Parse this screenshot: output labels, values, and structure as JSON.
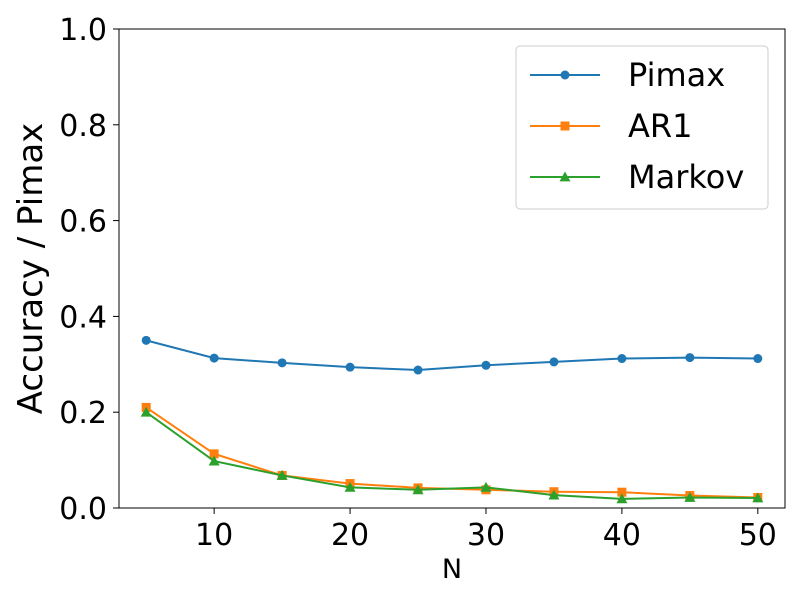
{
  "chart_data": {
    "type": "line",
    "title": "",
    "xlabel": "N",
    "ylabel": "Accuracy / Pimax",
    "xlim": [
      3,
      52
    ],
    "ylim": [
      0,
      1.0
    ],
    "x": [
      5,
      10,
      15,
      20,
      25,
      30,
      35,
      40,
      45,
      50
    ],
    "x_ticks": [
      "10",
      "20",
      "30",
      "40",
      "50"
    ],
    "y_ticks": [
      "0.0",
      "0.2",
      "0.4",
      "0.6",
      "0.8",
      "1.0"
    ],
    "grid": false,
    "legend_position": "top-right",
    "series": [
      {
        "name": "Pimax",
        "color": "#1f77b4",
        "marker": "circle",
        "values": [
          0.35,
          0.313,
          0.303,
          0.294,
          0.288,
          0.298,
          0.305,
          0.312,
          0.314,
          0.312
        ]
      },
      {
        "name": "AR1",
        "color": "#ff7f0e",
        "marker": "square",
        "values": [
          0.21,
          0.113,
          0.068,
          0.051,
          0.042,
          0.038,
          0.034,
          0.033,
          0.026,
          0.022
        ]
      },
      {
        "name": "Markov",
        "color": "#2ca02c",
        "marker": "triangle",
        "values": [
          0.2,
          0.098,
          0.068,
          0.043,
          0.038,
          0.043,
          0.027,
          0.019,
          0.022,
          0.021
        ]
      }
    ]
  }
}
